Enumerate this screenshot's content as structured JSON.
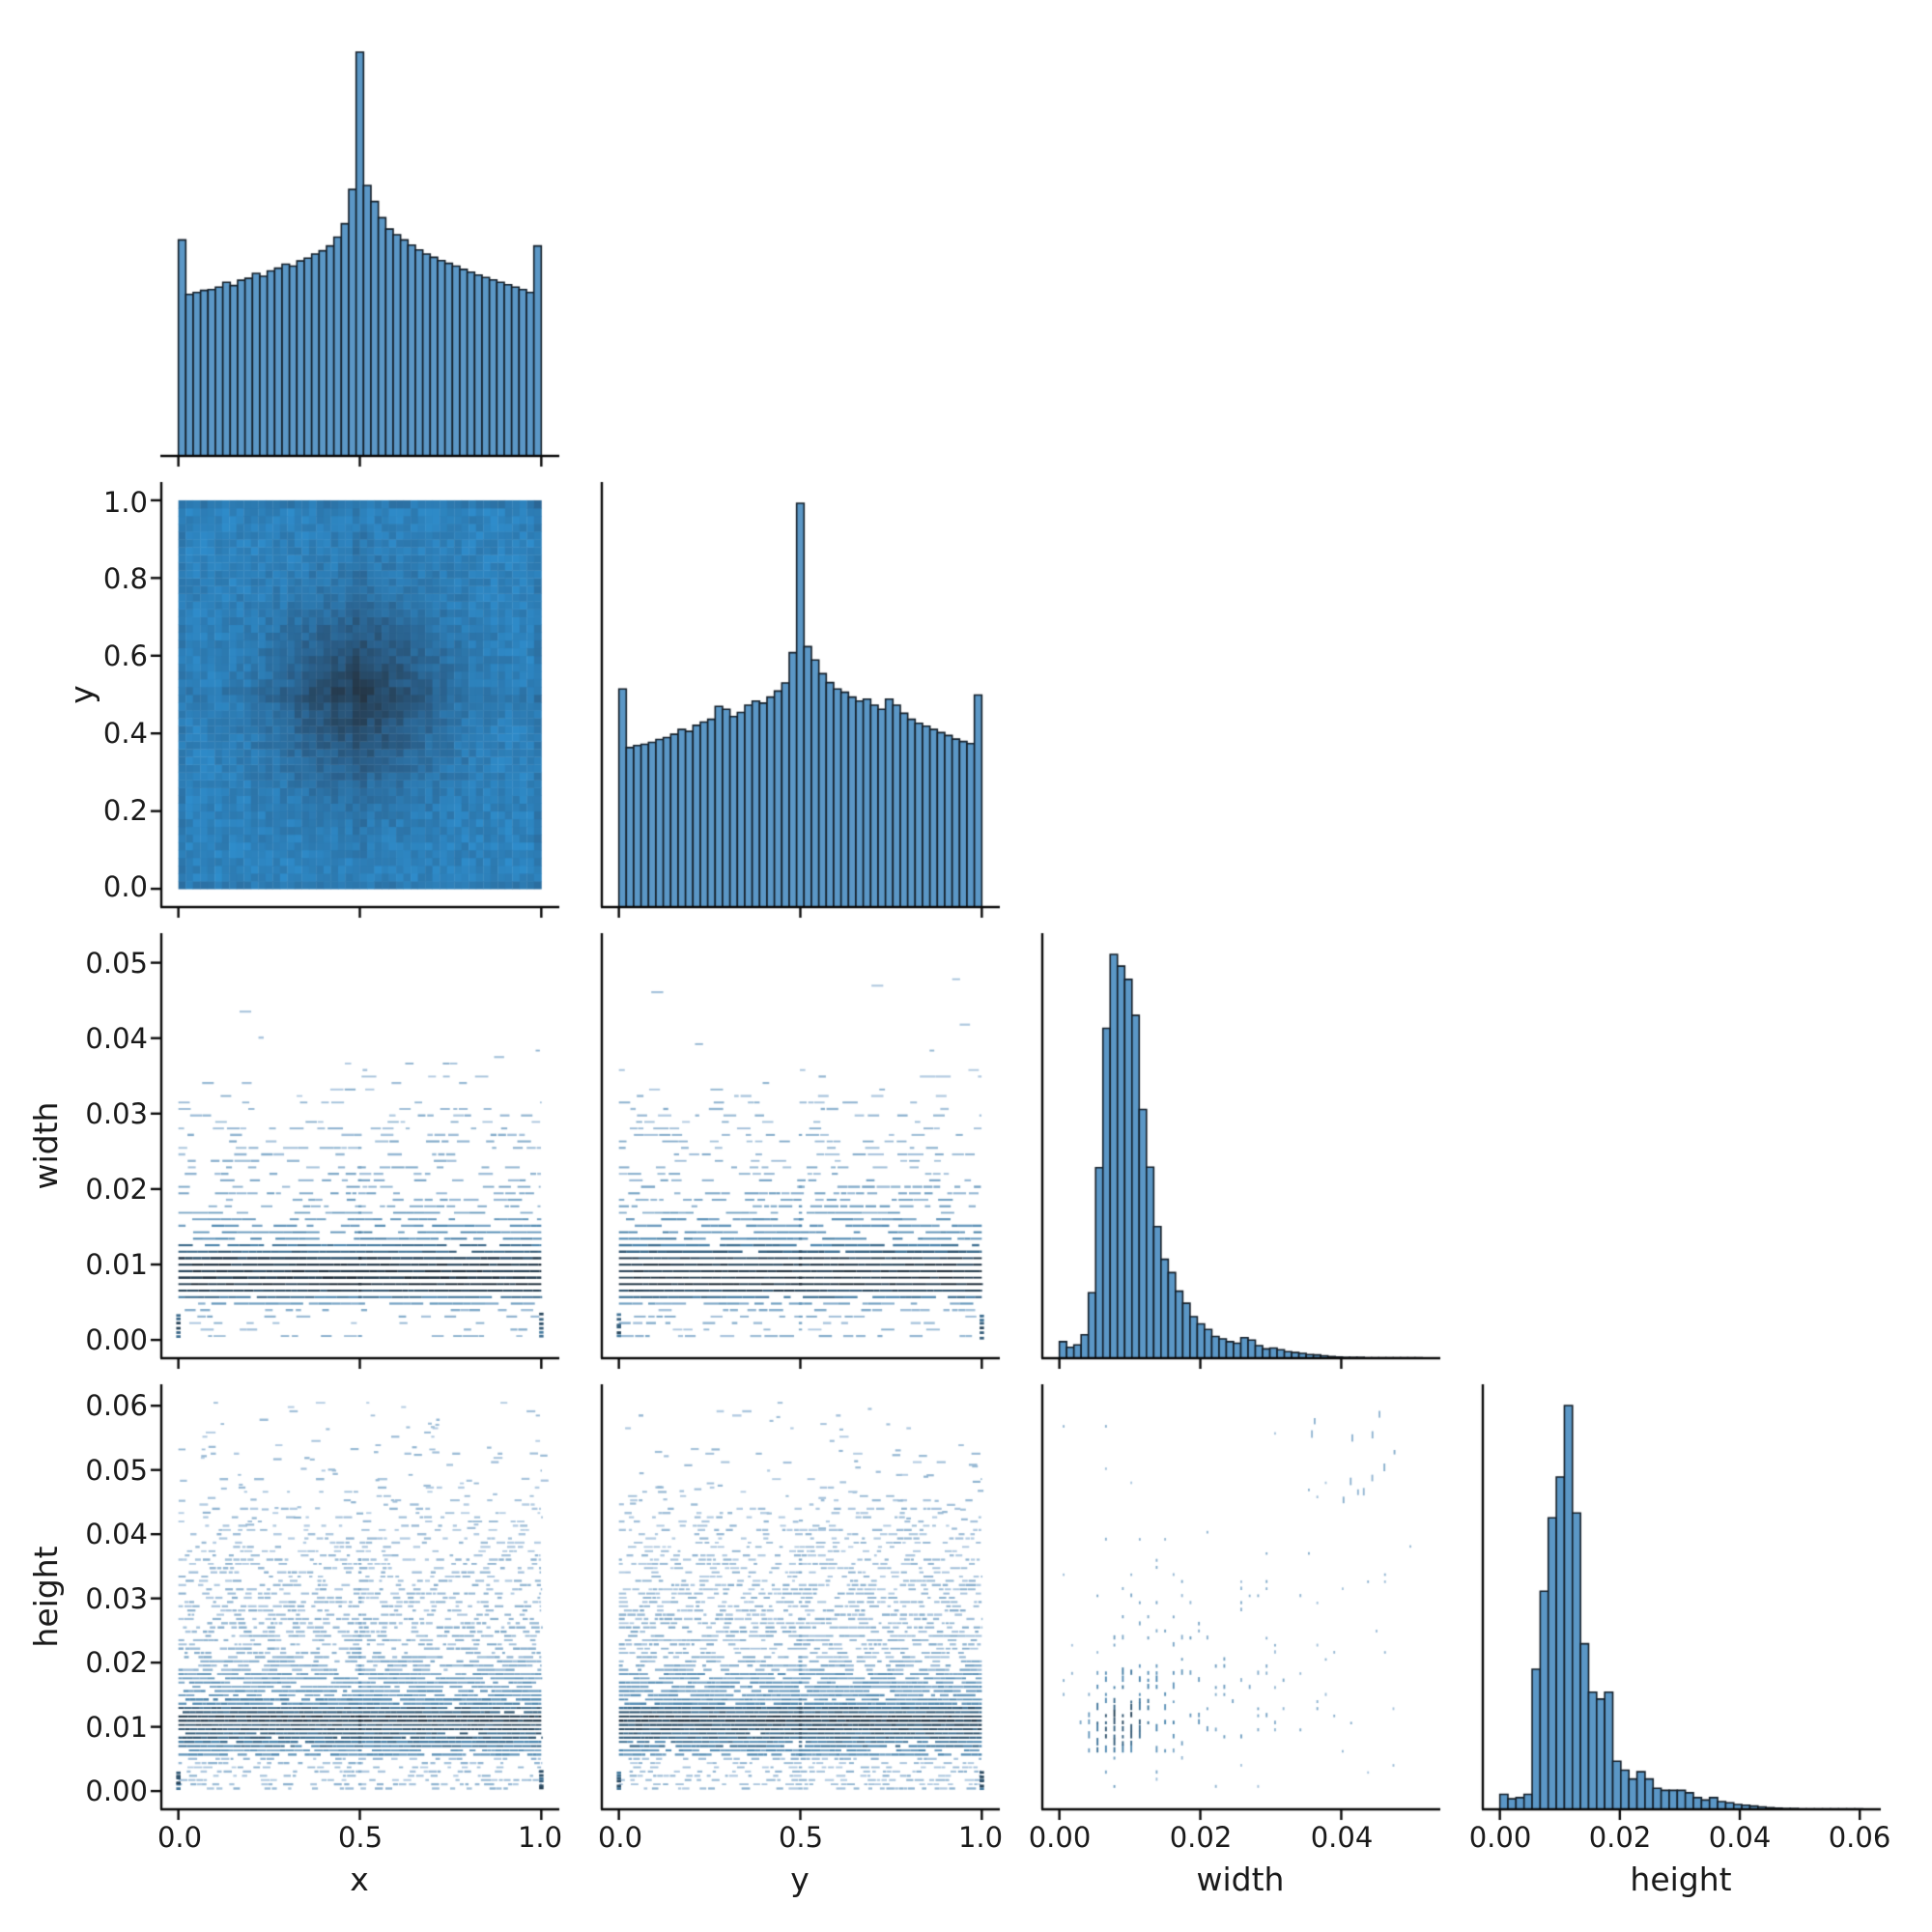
{
  "figure": {
    "type": "pairplot",
    "variables": [
      "x",
      "y",
      "width",
      "height"
    ],
    "background": "#ffffff",
    "layout_note": "lower-triangle 4x4 grid; diagonals are histograms, off-diagonals are bivariate histograms"
  },
  "colors": {
    "bar_fill": "#5b97c6",
    "bar_edge": "#141f29",
    "axis": "#0a0a0a",
    "heat_low": "#2f96d9",
    "heat_mid": "#2a5f8a",
    "heat_high": "#253646",
    "stripe_low": "#c6d8eb",
    "stripe_mid": "#4e88b0",
    "stripe_high": "#16232f"
  },
  "axes": {
    "bottom": [
      {
        "label": "x",
        "ticks": [
          "0.0",
          "0.5",
          "1.0"
        ]
      },
      {
        "label": "y",
        "ticks": [
          "0.0",
          "0.5",
          "1.0"
        ]
      },
      {
        "label": "width",
        "ticks": [
          "0.00",
          "0.02",
          "0.04"
        ]
      },
      {
        "label": "height",
        "ticks": [
          "0.00",
          "0.02",
          "0.04",
          "0.06"
        ]
      }
    ],
    "left": [
      {
        "label": "y",
        "ticks": [
          "0.0",
          "0.2",
          "0.4",
          "0.6",
          "0.8",
          "1.0"
        ]
      },
      {
        "label": "width",
        "ticks": [
          "0.00",
          "0.01",
          "0.02",
          "0.03",
          "0.04",
          "0.05"
        ]
      },
      {
        "label": "height",
        "ticks": [
          "0.00",
          "0.01",
          "0.02",
          "0.03",
          "0.04",
          "0.05",
          "0.06"
        ]
      }
    ]
  },
  "chart_data": [
    {
      "id": "x_hist",
      "type": "bar",
      "kind": "histogram",
      "row": 0,
      "col": 0,
      "variable": "x",
      "range": [
        0,
        1
      ],
      "bins": 49,
      "values_normalized": true,
      "shape": "symmetric tent, tall spike at 0.5, small spikes at 0 and 1",
      "values": [
        0.535,
        0.4,
        0.405,
        0.41,
        0.412,
        0.418,
        0.43,
        0.422,
        0.435,
        0.44,
        0.452,
        0.445,
        0.458,
        0.465,
        0.475,
        0.47,
        0.483,
        0.49,
        0.5,
        0.508,
        0.52,
        0.542,
        0.575,
        0.66,
        1.0,
        0.67,
        0.63,
        0.59,
        0.562,
        0.548,
        0.535,
        0.522,
        0.51,
        0.5,
        0.492,
        0.484,
        0.477,
        0.47,
        0.462,
        0.455,
        0.448,
        0.442,
        0.436,
        0.43,
        0.424,
        0.418,
        0.412,
        0.405,
        0.52
      ]
    },
    {
      "id": "y_hist",
      "type": "bar",
      "kind": "histogram",
      "row": 1,
      "col": 1,
      "variable": "y",
      "range": [
        0,
        1
      ],
      "bins": 49,
      "values_normalized": true,
      "shape": "symmetric tent, tall spike at 0.5, small spikes at 0 and 1",
      "values": [
        0.54,
        0.395,
        0.4,
        0.403,
        0.408,
        0.415,
        0.42,
        0.428,
        0.44,
        0.435,
        0.45,
        0.458,
        0.465,
        0.497,
        0.49,
        0.472,
        0.482,
        0.5,
        0.51,
        0.505,
        0.52,
        0.535,
        0.555,
        0.63,
        1.0,
        0.645,
        0.612,
        0.578,
        0.556,
        0.54,
        0.532,
        0.52,
        0.51,
        0.515,
        0.5,
        0.49,
        0.515,
        0.5,
        0.48,
        0.465,
        0.455,
        0.448,
        0.44,
        0.432,
        0.425,
        0.416,
        0.41,
        0.405,
        0.525
      ]
    },
    {
      "id": "width_hist",
      "type": "bar",
      "kind": "histogram",
      "row": 2,
      "col": 2,
      "variable": "width",
      "range": [
        0,
        0.0515
      ],
      "bins": 50,
      "values_normalized": true,
      "shape": "right-skewed, peak near 0.008, small bump near 0.020, tail to 0.035",
      "values": [
        0.041,
        0.027,
        0.033,
        0.058,
        0.162,
        0.472,
        0.817,
        1.0,
        0.971,
        0.938,
        0.849,
        0.616,
        0.473,
        0.326,
        0.245,
        0.212,
        0.166,
        0.136,
        0.103,
        0.085,
        0.071,
        0.054,
        0.048,
        0.041,
        0.037,
        0.051,
        0.045,
        0.031,
        0.023,
        0.025,
        0.021,
        0.016,
        0.014,
        0.012,
        0.009,
        0.008,
        0.006,
        0.004,
        0.003,
        0.002,
        0.002,
        0.002,
        0.001,
        0.001,
        0.001,
        0.001,
        0.001,
        0.001,
        0.001,
        0.001
      ]
    },
    {
      "id": "height_hist",
      "type": "bar",
      "kind": "histogram",
      "row": 3,
      "col": 3,
      "variable": "height",
      "range": [
        0,
        0.0605
      ],
      "bins": 45,
      "values_normalized": true,
      "shape": "right-skewed, sharp peak near 0.011, secondary bump near 0.016, tail to 0.035",
      "values": [
        0.037,
        0.026,
        0.029,
        0.037,
        0.347,
        0.54,
        0.722,
        0.823,
        1.0,
        0.734,
        0.41,
        0.29,
        0.273,
        0.29,
        0.119,
        0.097,
        0.075,
        0.093,
        0.075,
        0.052,
        0.047,
        0.047,
        0.047,
        0.041,
        0.029,
        0.023,
        0.029,
        0.019,
        0.016,
        0.012,
        0.01,
        0.008,
        0.006,
        0.004,
        0.003,
        0.002,
        0.002,
        0.001,
        0.001,
        0.001,
        0.001,
        0.001,
        0.001,
        0.001,
        0.001
      ]
    },
    {
      "id": "xy_density",
      "type": "heatmap",
      "row": 1,
      "col": 0,
      "x": "x",
      "y": "y",
      "x_range": [
        0,
        1
      ],
      "y_range": [
        0,
        1
      ],
      "grid": 50,
      "pattern": "uniform blue field with darker gaussian concentration at (0.5,0.5), darker outer edge rows/cols and faint dark cross through center"
    },
    {
      "id": "xw_density",
      "type": "heatmap",
      "row": 2,
      "col": 0,
      "x": "x",
      "y": "width",
      "x_range": [
        0,
        1
      ],
      "y_range": [
        0,
        0.0515
      ],
      "stripe_step": 0.00086,
      "pattern": "horizontal dashed stripes at discrete width values, darkest near width 0.007-0.010, sparse light dashes above 0.035, dark tick columns at x=0 and x=1 near bottom, faint vertical seam at x=0.5"
    },
    {
      "id": "yw_density",
      "type": "heatmap",
      "row": 2,
      "col": 1,
      "x": "y",
      "y": "width",
      "x_range": [
        0,
        1
      ],
      "y_range": [
        0,
        0.0515
      ],
      "stripe_step": 0.00086,
      "pattern": "same striped structure as x-width panel"
    },
    {
      "id": "xh_density",
      "type": "heatmap",
      "row": 3,
      "col": 0,
      "x": "x",
      "y": "height",
      "x_range": [
        0,
        1
      ],
      "y_range": [
        0,
        0.0605
      ],
      "stripe_step": 0.00066,
      "pattern": "dense noisy light-blue dashes up to height 0.035, dark band near 0.008-0.012, sparse outliers to 0.06, faint vertical streak at x=0.5"
    },
    {
      "id": "yh_density",
      "type": "heatmap",
      "row": 3,
      "col": 1,
      "x": "y",
      "y": "height",
      "x_range": [
        0,
        1
      ],
      "y_range": [
        0,
        0.0605
      ],
      "stripe_step": 0.00066,
      "pattern": "same noisy striped structure as x-height panel"
    },
    {
      "id": "wh_density",
      "type": "heatmap",
      "row": 3,
      "col": 2,
      "x": "width",
      "y": "height",
      "x_range": [
        0,
        0.0515
      ],
      "y_range": [
        0,
        0.0605
      ],
      "lattice_step": [
        0.0012,
        0.0011
      ],
      "pattern": "sparse lattice of small vertical dashes, densest and darkest near (0.009,0.009), positively correlated fan toward upper right, few outliers near (0.045,0.055)"
    }
  ]
}
